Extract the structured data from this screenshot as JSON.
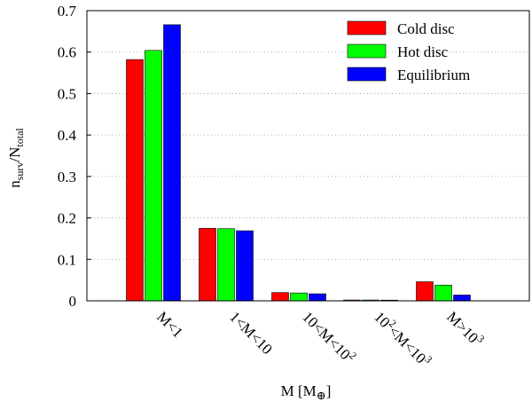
{
  "chart_data": {
    "type": "bar",
    "categories": [
      "M<1",
      "1<M<10",
      "10<M<10^2",
      "10^2<M<10^3",
      "M>10^3"
    ],
    "category_labels": [
      [
        {
          "t": "M<1"
        }
      ],
      [
        {
          "t": "1<M<10"
        }
      ],
      [
        {
          "t": "10<M<10"
        },
        {
          "t": "2",
          "sup": true
        }
      ],
      [
        {
          "t": "10"
        },
        {
          "t": "2",
          "sup": true
        },
        {
          "t": "<M<10"
        },
        {
          "t": "3",
          "sup": true
        }
      ],
      [
        {
          "t": "M>10"
        },
        {
          "t": "3",
          "sup": true
        }
      ]
    ],
    "series": [
      {
        "name": "Cold disc",
        "color": "#ff0000",
        "values": [
          0.582,
          0.175,
          0.02,
          0.002,
          0.046
        ]
      },
      {
        "name": "Hot disc",
        "color": "#00ff00",
        "values": [
          0.604,
          0.174,
          0.019,
          0.002,
          0.038
        ]
      },
      {
        "name": "Equilibrium",
        "color": "#0000ff",
        "values": [
          0.666,
          0.169,
          0.017,
          0.0,
          0.014
        ]
      }
    ],
    "ylim": [
      0,
      0.7
    ],
    "yticks": [
      "0",
      "0.1",
      "0.2",
      "0.3",
      "0.4",
      "0.5",
      "0.6",
      "0.7"
    ],
    "ytick_values": [
      0,
      0.1,
      0.2,
      0.3,
      0.4,
      0.5,
      0.6,
      0.7
    ],
    "ylabel": {
      "main": "n",
      "sub1": "surv",
      "mid": "/N",
      "sub2": "total"
    },
    "xlabel": {
      "main": "M [M",
      "sub": "⊕",
      "end": "]"
    },
    "grid": "horizontal-dotted",
    "legend_position": "top-right"
  }
}
